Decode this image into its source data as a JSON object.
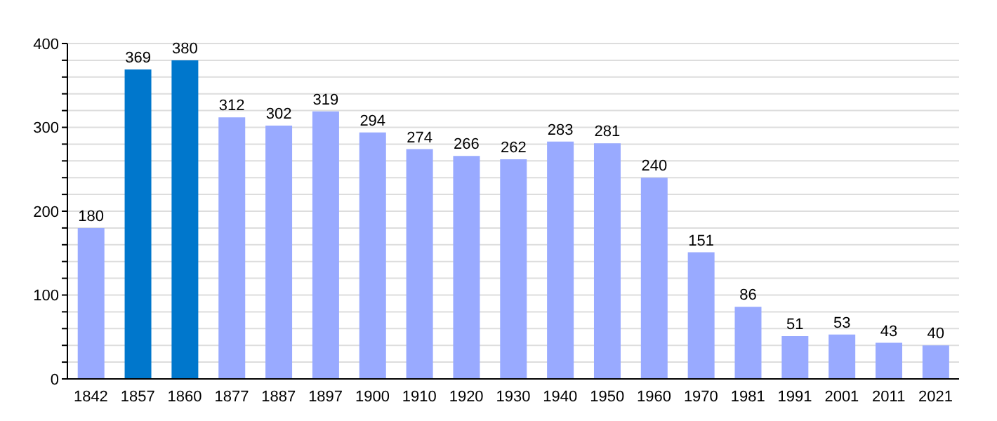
{
  "chart_data": {
    "type": "bar",
    "categories": [
      "1842",
      "1857",
      "1860",
      "1877",
      "1887",
      "1897",
      "1900",
      "1910",
      "1920",
      "1930",
      "1940",
      "1950",
      "1960",
      "1970",
      "1981",
      "1991",
      "2001",
      "2011",
      "2021"
    ],
    "values": [
      180,
      369,
      380,
      312,
      302,
      319,
      294,
      274,
      266,
      262,
      283,
      281,
      240,
      151,
      86,
      51,
      53,
      43,
      40
    ],
    "colors": [
      "#99aaff",
      "#0077cc",
      "#0077cc",
      "#99aaff",
      "#99aaff",
      "#99aaff",
      "#99aaff",
      "#99aaff",
      "#99aaff",
      "#99aaff",
      "#99aaff",
      "#99aaff",
      "#99aaff",
      "#99aaff",
      "#99aaff",
      "#99aaff",
      "#99aaff",
      "#99aaff",
      "#99aaff"
    ],
    "ylim": [
      0,
      400
    ],
    "yticks": [
      0,
      {
        "value": 20,
        "label": null
      },
      {
        "value": 40,
        "label": null
      },
      {
        "value": 60,
        "label": null
      },
      {
        "value": 80,
        "label": null
      },
      100,
      {
        "value": 120,
        "label": null
      },
      {
        "value": 140,
        "label": null
      },
      {
        "value": 160,
        "label": null
      },
      {
        "value": 180,
        "label": null
      },
      200,
      {
        "value": 220,
        "label": null
      },
      {
        "value": 240,
        "label": null
      },
      {
        "value": 260,
        "label": null
      },
      {
        "value": 280,
        "label": null
      },
      300,
      {
        "value": 320,
        "label": null
      },
      {
        "value": 340,
        "label": null
      },
      {
        "value": 360,
        "label": null
      },
      {
        "value": 380,
        "label": null
      },
      400
    ],
    "grid": "y",
    "data_labels": true
  }
}
